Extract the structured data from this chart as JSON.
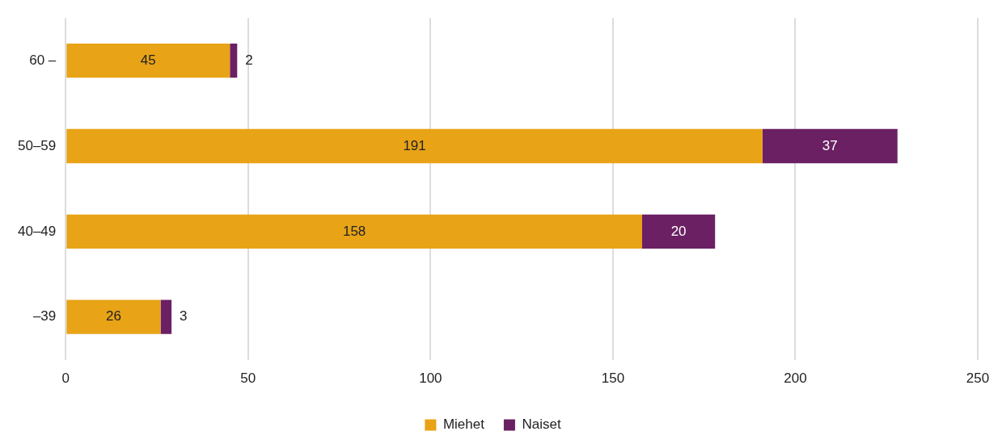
{
  "chart_data": {
    "type": "bar",
    "orientation": "horizontal",
    "stacked": true,
    "categories": [
      "60 –",
      "50–59",
      "40–49",
      "–39"
    ],
    "series": [
      {
        "name": "Miehet",
        "color": "#e8a317",
        "values": [
          45,
          191,
          158,
          26
        ]
      },
      {
        "name": "Naiset",
        "color": "#6a2063",
        "values": [
          2,
          37,
          20,
          3
        ]
      }
    ],
    "xlim": [
      0,
      250
    ],
    "xticks": [
      0,
      50,
      100,
      150,
      200,
      250
    ],
    "grid": "x",
    "legend": "bottom",
    "data_labels": true
  }
}
